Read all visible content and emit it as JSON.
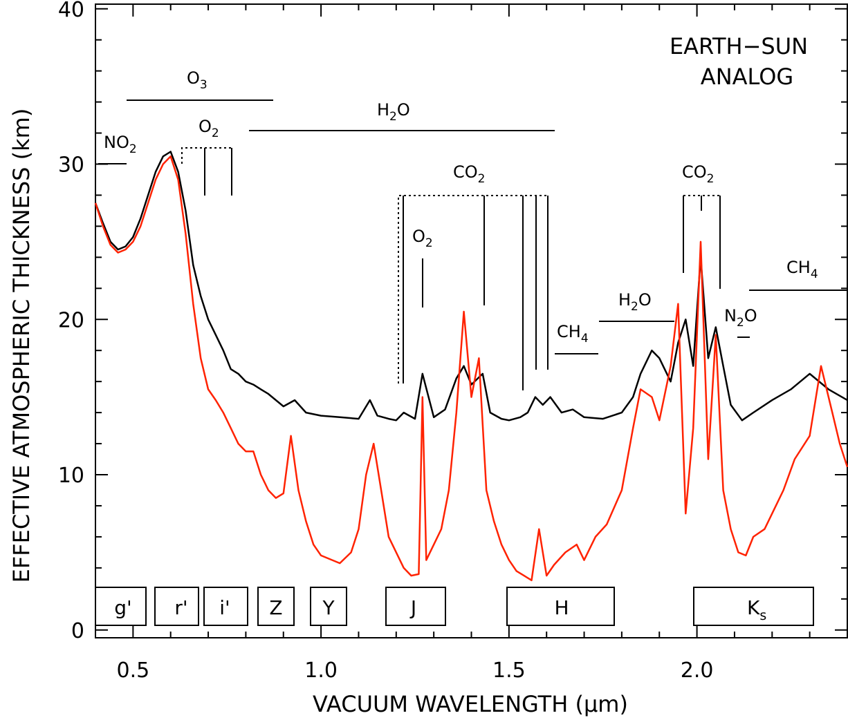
{
  "chart_data": {
    "type": "line",
    "title": "",
    "corner_label": [
      "EARTH−SUN",
      "ANALOG"
    ],
    "xlabel": "VACUUM WAVELENGTH (μm)",
    "ylabel": "EFFECTIVE ATMOSPHERIC THICKNESS (km)",
    "xlim": [
      0.4,
      2.4
    ],
    "ylim": [
      -0.5,
      40.3
    ],
    "xticks": [
      0.5,
      1.0,
      1.5,
      2.0
    ],
    "xtick_labels": [
      "0.5",
      "1.0",
      "1.5",
      "2.0"
    ],
    "yticks": [
      0,
      10,
      20,
      30,
      40
    ],
    "ytick_labels": [
      "0",
      "10",
      "20",
      "30",
      "40"
    ],
    "grid": false,
    "legend": "none",
    "series": [
      {
        "color": "#000000",
        "x": [
          0.4,
          0.42,
          0.44,
          0.46,
          0.48,
          0.5,
          0.52,
          0.54,
          0.56,
          0.58,
          0.6,
          0.62,
          0.64,
          0.66,
          0.68,
          0.7,
          0.72,
          0.74,
          0.76,
          0.78,
          0.8,
          0.82,
          0.84,
          0.86,
          0.88,
          0.9,
          0.93,
          0.96,
          1.0,
          1.05,
          1.1,
          1.13,
          1.15,
          1.18,
          1.2,
          1.22,
          1.25,
          1.27,
          1.3,
          1.33,
          1.36,
          1.38,
          1.4,
          1.43,
          1.45,
          1.48,
          1.5,
          1.53,
          1.55,
          1.57,
          1.59,
          1.61,
          1.64,
          1.67,
          1.7,
          1.75,
          1.8,
          1.83,
          1.85,
          1.88,
          1.9,
          1.93,
          1.95,
          1.97,
          1.99,
          2.01,
          2.03,
          2.05,
          2.07,
          2.09,
          2.12,
          2.15,
          2.2,
          2.25,
          2.3,
          2.35,
          2.4
        ],
        "y": [
          27.5,
          26.2,
          25.0,
          24.5,
          24.7,
          25.3,
          26.5,
          28.0,
          29.5,
          30.5,
          30.8,
          29.5,
          27.0,
          23.5,
          21.5,
          20.0,
          19.0,
          18.0,
          16.8,
          16.5,
          16.0,
          15.8,
          15.5,
          15.2,
          14.8,
          14.4,
          14.8,
          14.0,
          13.8,
          13.7,
          13.6,
          14.8,
          13.8,
          13.6,
          13.5,
          14.0,
          13.6,
          16.5,
          13.7,
          14.2,
          16.2,
          17.0,
          15.8,
          16.5,
          14.0,
          13.6,
          13.5,
          13.7,
          14.0,
          15.0,
          14.5,
          15.0,
          14.0,
          14.2,
          13.7,
          13.6,
          14.0,
          15.0,
          16.5,
          18.0,
          17.5,
          16.0,
          18.5,
          20.0,
          17.0,
          24.0,
          17.5,
          19.5,
          17.0,
          14.5,
          13.5,
          14.0,
          14.8,
          15.5,
          16.5,
          15.5,
          14.8
        ]
      },
      {
        "color": "#ff2200",
        "x": [
          0.4,
          0.42,
          0.44,
          0.46,
          0.48,
          0.5,
          0.52,
          0.54,
          0.56,
          0.58,
          0.6,
          0.62,
          0.64,
          0.66,
          0.68,
          0.7,
          0.72,
          0.74,
          0.76,
          0.78,
          0.8,
          0.82,
          0.84,
          0.86,
          0.88,
          0.9,
          0.92,
          0.94,
          0.96,
          0.98,
          1.0,
          1.03,
          1.05,
          1.08,
          1.1,
          1.12,
          1.14,
          1.16,
          1.18,
          1.2,
          1.22,
          1.24,
          1.26,
          1.27,
          1.28,
          1.3,
          1.32,
          1.34,
          1.36,
          1.38,
          1.4,
          1.42,
          1.44,
          1.46,
          1.48,
          1.5,
          1.52,
          1.54,
          1.56,
          1.58,
          1.6,
          1.62,
          1.65,
          1.68,
          1.7,
          1.73,
          1.76,
          1.8,
          1.83,
          1.85,
          1.88,
          1.9,
          1.93,
          1.95,
          1.97,
          1.99,
          2.01,
          2.03,
          2.05,
          2.07,
          2.09,
          2.11,
          2.13,
          2.15,
          2.18,
          2.2,
          2.23,
          2.26,
          2.3,
          2.33,
          2.36,
          2.38,
          2.4
        ],
        "y": [
          27.5,
          26.0,
          24.8,
          24.3,
          24.5,
          25.0,
          26.0,
          27.5,
          29.0,
          30.0,
          30.5,
          29.0,
          25.5,
          21.0,
          17.5,
          15.5,
          14.8,
          14.0,
          13.0,
          12.0,
          11.5,
          11.5,
          10.0,
          9.0,
          8.5,
          8.8,
          12.5,
          9.0,
          7.0,
          5.5,
          4.8,
          4.5,
          4.3,
          5.0,
          6.5,
          10.0,
          12.0,
          9.0,
          6.0,
          5.0,
          4.0,
          3.5,
          3.6,
          15.0,
          4.5,
          5.5,
          6.5,
          9.0,
          14.0,
          20.5,
          15.0,
          17.5,
          9.0,
          7.0,
          5.5,
          4.5,
          3.8,
          3.5,
          3.2,
          6.5,
          3.5,
          4.2,
          5.0,
          5.5,
          4.5,
          6.0,
          6.8,
          9.0,
          13.0,
          15.5,
          15.0,
          13.5,
          17.0,
          21.0,
          7.5,
          13.0,
          25.0,
          11.0,
          19.0,
          9.0,
          6.5,
          5.0,
          4.8,
          6.0,
          6.5,
          7.5,
          9.0,
          11.0,
          12.5,
          17.0,
          14.0,
          12.0,
          10.5
        ]
      }
    ],
    "filters": [
      "g'",
      "r'",
      "i'",
      "Z",
      "Y",
      "J",
      "H",
      "K",
      "s"
    ],
    "species": {
      "NO2": [
        "NO",
        "2"
      ],
      "O3": [
        "O",
        "3"
      ],
      "O2a": [
        "O",
        "2"
      ],
      "H2Oa": [
        "H",
        "2",
        "O"
      ],
      "CO2a": [
        "CO",
        "2"
      ],
      "O2b": [
        "O",
        "2"
      ],
      "CH4a": [
        "CH",
        "4"
      ],
      "H2Ob": [
        "H",
        "2",
        "O"
      ],
      "CO2b": [
        "CO",
        "2"
      ],
      "N2O": [
        "N",
        "2",
        "O"
      ],
      "CH4b": [
        "CH",
        "4"
      ]
    }
  }
}
